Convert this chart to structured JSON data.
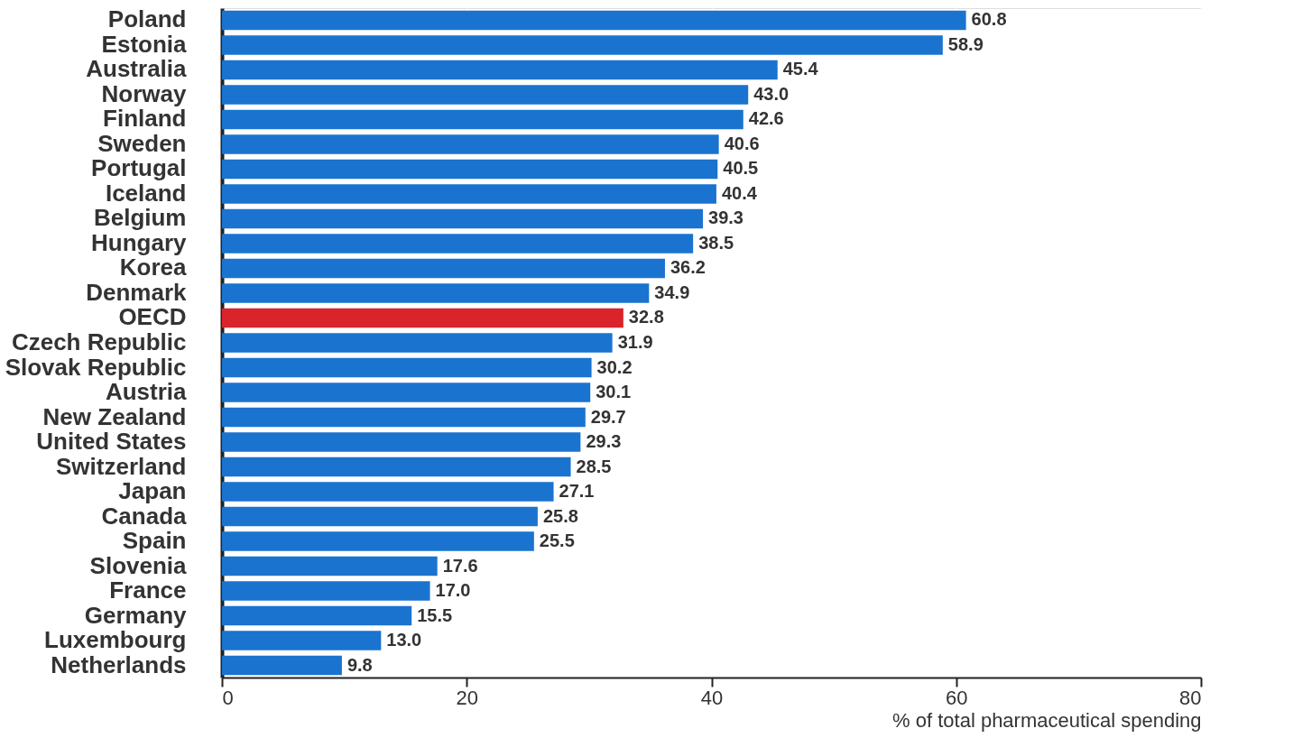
{
  "chart_data": {
    "type": "bar",
    "orientation": "horizontal",
    "xlabel": "% of total pharmaceutical spending",
    "categories": [
      "Poland",
      "Estonia",
      "Australia",
      "Norway",
      "Finland",
      "Sweden",
      "Portugal",
      "Iceland",
      "Belgium",
      "Hungary",
      "Korea",
      "Denmark",
      "OECD",
      "Czech Republic",
      "Slovak Republic",
      "Austria",
      "New Zealand",
      "United States",
      "Switzerland",
      "Japan",
      "Canada",
      "Spain",
      "Slovenia",
      "France",
      "Germany",
      "Luxembourg",
      "Netherlands"
    ],
    "values": [
      60.8,
      58.9,
      45.4,
      43.0,
      42.6,
      40.6,
      40.5,
      40.4,
      39.3,
      38.5,
      36.2,
      34.9,
      32.8,
      31.9,
      30.2,
      30.1,
      29.7,
      29.3,
      28.5,
      27.1,
      25.8,
      25.5,
      17.6,
      17.0,
      15.5,
      13.0,
      9.8
    ],
    "colors": [
      "#1a73cf",
      "#1a73cf",
      "#1a73cf",
      "#1a73cf",
      "#1a73cf",
      "#1a73cf",
      "#1a73cf",
      "#1a73cf",
      "#1a73cf",
      "#1a73cf",
      "#1a73cf",
      "#1a73cf",
      "#d9242b",
      "#1a73cf",
      "#1a73cf",
      "#1a73cf",
      "#1a73cf",
      "#1a73cf",
      "#1a73cf",
      "#1a73cf",
      "#1a73cf",
      "#1a73cf",
      "#1a73cf",
      "#1a73cf",
      "#1a73cf",
      "#1a73cf",
      "#1a73cf"
    ],
    "value_labels": [
      "60.8",
      "58.9",
      "45.4",
      "43.0",
      "42.6",
      "40.6",
      "40.5",
      "40.4",
      "39.3",
      "38.5",
      "36.2",
      "34.9",
      "32.8",
      "31.9",
      "30.2",
      "30.1",
      "29.7",
      "29.3",
      "28.5",
      "27.1",
      "25.8",
      "25.5",
      "17.6",
      "17.0",
      "15.5",
      "13.0",
      "9.8"
    ],
    "xlim": [
      0,
      80
    ],
    "xticks": [
      0,
      20,
      40,
      60,
      80
    ],
    "grid": "x"
  }
}
